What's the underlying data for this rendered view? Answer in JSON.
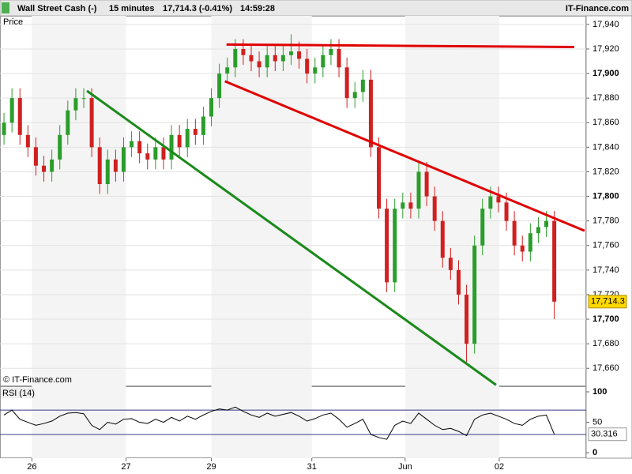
{
  "header": {
    "symbol": "Wall Street Cash (-)",
    "interval": "15 minutes",
    "quote": "17,714.3 (-0.41%)",
    "time": "14:59:28",
    "brand": "IT-Finance.com"
  },
  "chart_data": [
    {
      "type": "candlestick",
      "pane_label": "Price",
      "watermark": "© IT-Finance.com",
      "up_color": "#2a9d2a",
      "down_color": "#d02020",
      "grid": true,
      "xlim": [
        -0.5,
        73
      ],
      "xticks": [
        {
          "value": 3.5,
          "label": "26"
        },
        {
          "value": 15.3,
          "label": "27"
        },
        {
          "value": 26,
          "label": "29"
        },
        {
          "value": 38.6,
          "label": "31"
        },
        {
          "value": 50.3,
          "label": "Jun"
        },
        {
          "value": 62.1,
          "label": "02"
        }
      ],
      "ylim": [
        17646,
        17947
      ],
      "yticks": [
        {
          "value": 17660,
          "label": "17,660"
        },
        {
          "value": 17680,
          "label": "17,680"
        },
        {
          "value": 17700,
          "label": "17,700"
        },
        {
          "value": 17720,
          "label": "17,720"
        },
        {
          "value": 17740,
          "label": "17,740"
        },
        {
          "value": 17760,
          "label": "17,760"
        },
        {
          "value": 17780,
          "label": "17,780"
        },
        {
          "value": 17800,
          "label": "17,800"
        },
        {
          "value": 17820,
          "label": "17,820"
        },
        {
          "value": 17840,
          "label": "17,840"
        },
        {
          "value": 17860,
          "label": "17,860"
        },
        {
          "value": 17880,
          "label": "17,880"
        },
        {
          "value": 17900,
          "label": "17,900"
        },
        {
          "value": 17920,
          "label": "17,920"
        },
        {
          "value": 17940,
          "label": "17,940"
        }
      ],
      "open": [
        17850,
        17860,
        17880,
        17850,
        17840,
        17825,
        17820,
        17830,
        17850,
        17870,
        17880,
        17880,
        17840,
        17810,
        17830,
        17820,
        17840,
        17845,
        17835,
        17830,
        17840,
        17830,
        17850,
        17840,
        17855,
        17850,
        17865,
        17880,
        17900,
        17905,
        17920,
        17915,
        17910,
        17905,
        17915,
        17910,
        17915,
        17918,
        17912,
        17900,
        17905,
        17915,
        17920,
        17905,
        17880,
        17885,
        17895,
        17840,
        17790,
        17730,
        17790,
        17795,
        17790,
        17820,
        17800,
        17780,
        17750,
        17740,
        17720,
        17680,
        17760,
        17790,
        17800,
        17795,
        17780,
        17760,
        17755,
        17770,
        17775,
        17780
      ],
      "high": [
        17868,
        17888,
        17888,
        17858,
        17848,
        17833,
        17838,
        17858,
        17878,
        17888,
        17888,
        17888,
        17848,
        17838,
        17838,
        17848,
        17853,
        17853,
        17843,
        17848,
        17848,
        17858,
        17858,
        17863,
        17863,
        17873,
        17888,
        17908,
        17913,
        17928,
        17928,
        17923,
        17918,
        17923,
        17923,
        17923,
        17932,
        17926,
        17920,
        17913,
        17923,
        17928,
        17928,
        17913,
        17893,
        17903,
        17903,
        17848,
        17798,
        17798,
        17803,
        17803,
        17828,
        17828,
        17808,
        17788,
        17758,
        17748,
        17728,
        17768,
        17798,
        17808,
        17808,
        17803,
        17788,
        17768,
        17778,
        17783,
        17788,
        17788
      ],
      "low": [
        17842,
        17852,
        17842,
        17832,
        17817,
        17812,
        17812,
        17822,
        17842,
        17862,
        17872,
        17832,
        17802,
        17802,
        17812,
        17812,
        17832,
        17827,
        17822,
        17822,
        17822,
        17822,
        17832,
        17832,
        17842,
        17842,
        17857,
        17872,
        17892,
        17897,
        17907,
        17902,
        17897,
        17897,
        17902,
        17902,
        17907,
        17904,
        17892,
        17892,
        17897,
        17907,
        17897,
        17872,
        17872,
        17877,
        17832,
        17782,
        17722,
        17722,
        17782,
        17782,
        17782,
        17792,
        17772,
        17742,
        17732,
        17712,
        17665,
        17672,
        17752,
        17782,
        17787,
        17772,
        17752,
        17747,
        17747,
        17762,
        17767,
        17700
      ],
      "close": [
        17860,
        17880,
        17850,
        17840,
        17825,
        17820,
        17830,
        17850,
        17870,
        17880,
        17880,
        17840,
        17810,
        17830,
        17820,
        17840,
        17845,
        17835,
        17830,
        17840,
        17830,
        17850,
        17840,
        17855,
        17850,
        17865,
        17880,
        17900,
        17905,
        17920,
        17915,
        17910,
        17905,
        17915,
        17910,
        17915,
        17918,
        17912,
        17900,
        17905,
        17915,
        17920,
        17905,
        17880,
        17885,
        17895,
        17840,
        17790,
        17730,
        17790,
        17795,
        17790,
        17820,
        17800,
        17780,
        17750,
        17740,
        17720,
        17680,
        17760,
        17790,
        17800,
        17795,
        17780,
        17760,
        17755,
        17770,
        17775,
        17780,
        17714.3
      ],
      "last": {
        "value": 17714.3,
        "label": "17,714.3"
      },
      "trendlines": [
        {
          "color": "#e00000",
          "x": [
            27.9,
            71.5
          ],
          "y": [
            17923.6,
            17921.6
          ]
        },
        {
          "color": "#e00000",
          "x": [
            27.7,
            72.8
          ],
          "y": [
            17893.7,
            17772
          ]
        },
        {
          "color": "#1a8a1a",
          "x": [
            10.4,
            61.7
          ],
          "y": [
            17885.9,
            17646.5
          ]
        }
      ]
    },
    {
      "type": "line",
      "pane_label": "RSI (14)",
      "color": "#000000",
      "level_color": "#3a3a8a",
      "ylim": [
        -9,
        107.8
      ],
      "yticks": [
        100,
        50,
        0
      ],
      "levels": [
        70,
        30
      ],
      "values": [
        62,
        70,
        55,
        50,
        45,
        48,
        52,
        60,
        65,
        66,
        64,
        45,
        38,
        50,
        47,
        55,
        56,
        50,
        48,
        55,
        50,
        58,
        52,
        60,
        55,
        62,
        68,
        72,
        70,
        75,
        68,
        62,
        58,
        65,
        60,
        63,
        66,
        60,
        52,
        56,
        62,
        65,
        55,
        42,
        48,
        55,
        30,
        25,
        22,
        45,
        52,
        48,
        65,
        55,
        45,
        38,
        40,
        35,
        28,
        55,
        62,
        65,
        60,
        55,
        48,
        45,
        55,
        60,
        62,
        30.316
      ],
      "last": {
        "value": 30.316,
        "label": "30.316"
      }
    }
  ]
}
